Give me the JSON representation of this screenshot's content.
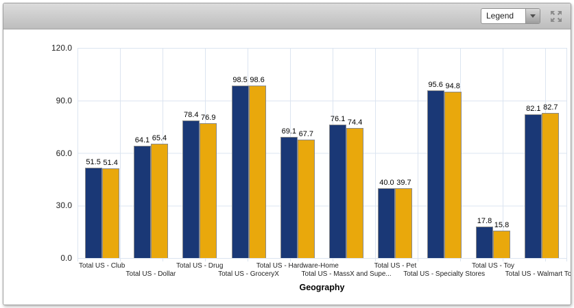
{
  "toolbar": {
    "legend_dropdown": {
      "value": "Legend"
    }
  },
  "chart_data": {
    "type": "bar",
    "title": "",
    "xlabel": "Geography",
    "ylabel": "",
    "ylim": [
      0,
      120
    ],
    "yticks": [
      "120.0",
      "90.0",
      "60.0",
      "30.0",
      "0.0"
    ],
    "grid": "both",
    "legend_position": "hidden",
    "categories": [
      "Total US - Club",
      "Total US - Dollar",
      "Total US - Drug",
      "Total US - GroceryX",
      "Total US - Hardware-Home",
      "Total US - MassX and Supe...",
      "Total US - Pet",
      "Total US - Specialty Stores",
      "Total US - Toy",
      "Total US - Walmart Total"
    ],
    "series": [
      {
        "color": "#1A3876",
        "values": [
          51.5,
          64.1,
          78.4,
          98.5,
          69.1,
          76.1,
          40.0,
          95.6,
          17.8,
          82.1
        ]
      },
      {
        "color": "#E9A80C",
        "values": [
          51.4,
          65.4,
          76.9,
          98.6,
          67.7,
          74.4,
          39.7,
          94.8,
          15.8,
          82.7
        ]
      }
    ],
    "value_label_decimals": 1
  },
  "colors": {
    "grid": "#DBE4F0",
    "bar_border": "#8A8A8A",
    "toolbar_top": "#DCDCDC",
    "toolbar_bottom": "#BDBDBD"
  }
}
